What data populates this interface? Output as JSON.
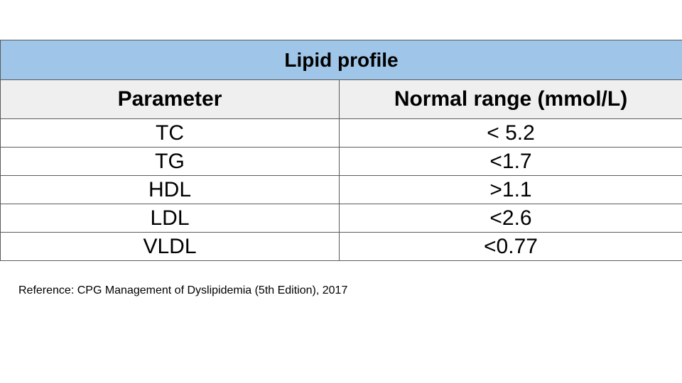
{
  "table": {
    "title": "Lipid profile",
    "headers": [
      "Parameter",
      "Normal range (mmol/L)"
    ],
    "rows": [
      {
        "parameter": "TC",
        "range": "< 5.2"
      },
      {
        "parameter": "TG",
        "range": "<1.7"
      },
      {
        "parameter": "HDL",
        "range": ">1.1"
      },
      {
        "parameter": "LDL",
        "range": "<2.6"
      },
      {
        "parameter": "VLDL",
        "range": "<0.77"
      }
    ]
  },
  "reference": "Reference: CPG Management of Dyslipidemia (5th Edition), 2017",
  "colors": {
    "title_bg": "#9fc5e8",
    "header_bg": "#efefef",
    "border": "#5b5b5b"
  }
}
